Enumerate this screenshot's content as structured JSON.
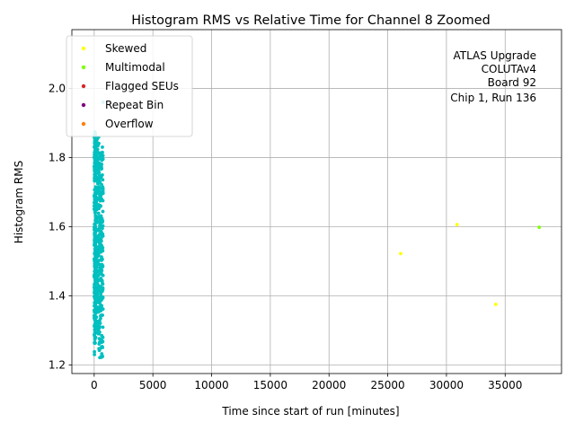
{
  "chart_data": {
    "type": "scatter",
    "title": "Histogram RMS vs Relative Time for Channel 8 Zoomed",
    "xlabel": "Time since start of run [minutes]",
    "ylabel": "Histogram RMS",
    "xlim": [
      -1900,
      39800
    ],
    "ylim": [
      1.175,
      2.17
    ],
    "xticks": [
      0,
      5000,
      10000,
      15000,
      20000,
      25000,
      30000,
      35000
    ],
    "xtick_labels": [
      "0",
      "5000",
      "10000",
      "15000",
      "20000",
      "25000",
      "30000",
      "35000"
    ],
    "yticks": [
      1.2,
      1.4,
      1.6,
      1.8,
      2.0
    ],
    "ytick_labels": [
      "1.2",
      "1.4",
      "1.6",
      "1.8",
      "2.0"
    ],
    "grid": true,
    "legend_position": "top-left",
    "annotation": [
      "ATLAS Upgrade",
      "COLUTAv4",
      "Board 92",
      "Chip 1, Run 136"
    ],
    "legend": [
      {
        "name": "Skewed",
        "color": "#ffff00"
      },
      {
        "name": "Multimodal",
        "color": "#7fff00"
      },
      {
        "name": "Flagged SEUs",
        "color": "#d62728"
      },
      {
        "name": "Repeat Bin",
        "color": "#800080"
      },
      {
        "name": "Overflow",
        "color": "#ff7f0e"
      }
    ],
    "series": [
      {
        "name": "Skewed",
        "color": "#ffff00",
        "points": [
          [
            26100,
            1.522
          ],
          [
            30900,
            1.606
          ],
          [
            34200,
            1.375
          ]
        ]
      },
      {
        "name": "Multimodal",
        "color": "#7fff00",
        "points": [
          [
            37900,
            1.598
          ]
        ]
      },
      {
        "name": "",
        "color": "#00bfbf",
        "clusters": [
          {
            "x_range": [
              0,
              130
            ],
            "y_range": [
              1.26,
              1.87
            ],
            "n": 240
          },
          {
            "x_range": [
              130,
              400
            ],
            "y_range": [
              1.29,
              1.86
            ],
            "n": 170
          },
          {
            "x_range": [
              400,
              760
            ],
            "y_range": [
              1.22,
              1.83
            ],
            "n": 190
          }
        ],
        "points": [
          [
            20,
            1.23
          ],
          [
            20,
            1.238
          ],
          [
            60,
            1.874
          ],
          [
            60,
            1.852
          ],
          [
            250,
            1.818
          ],
          [
            700,
            1.83
          ],
          [
            700,
            1.815
          ],
          [
            760,
            1.96
          ]
        ]
      }
    ]
  }
}
